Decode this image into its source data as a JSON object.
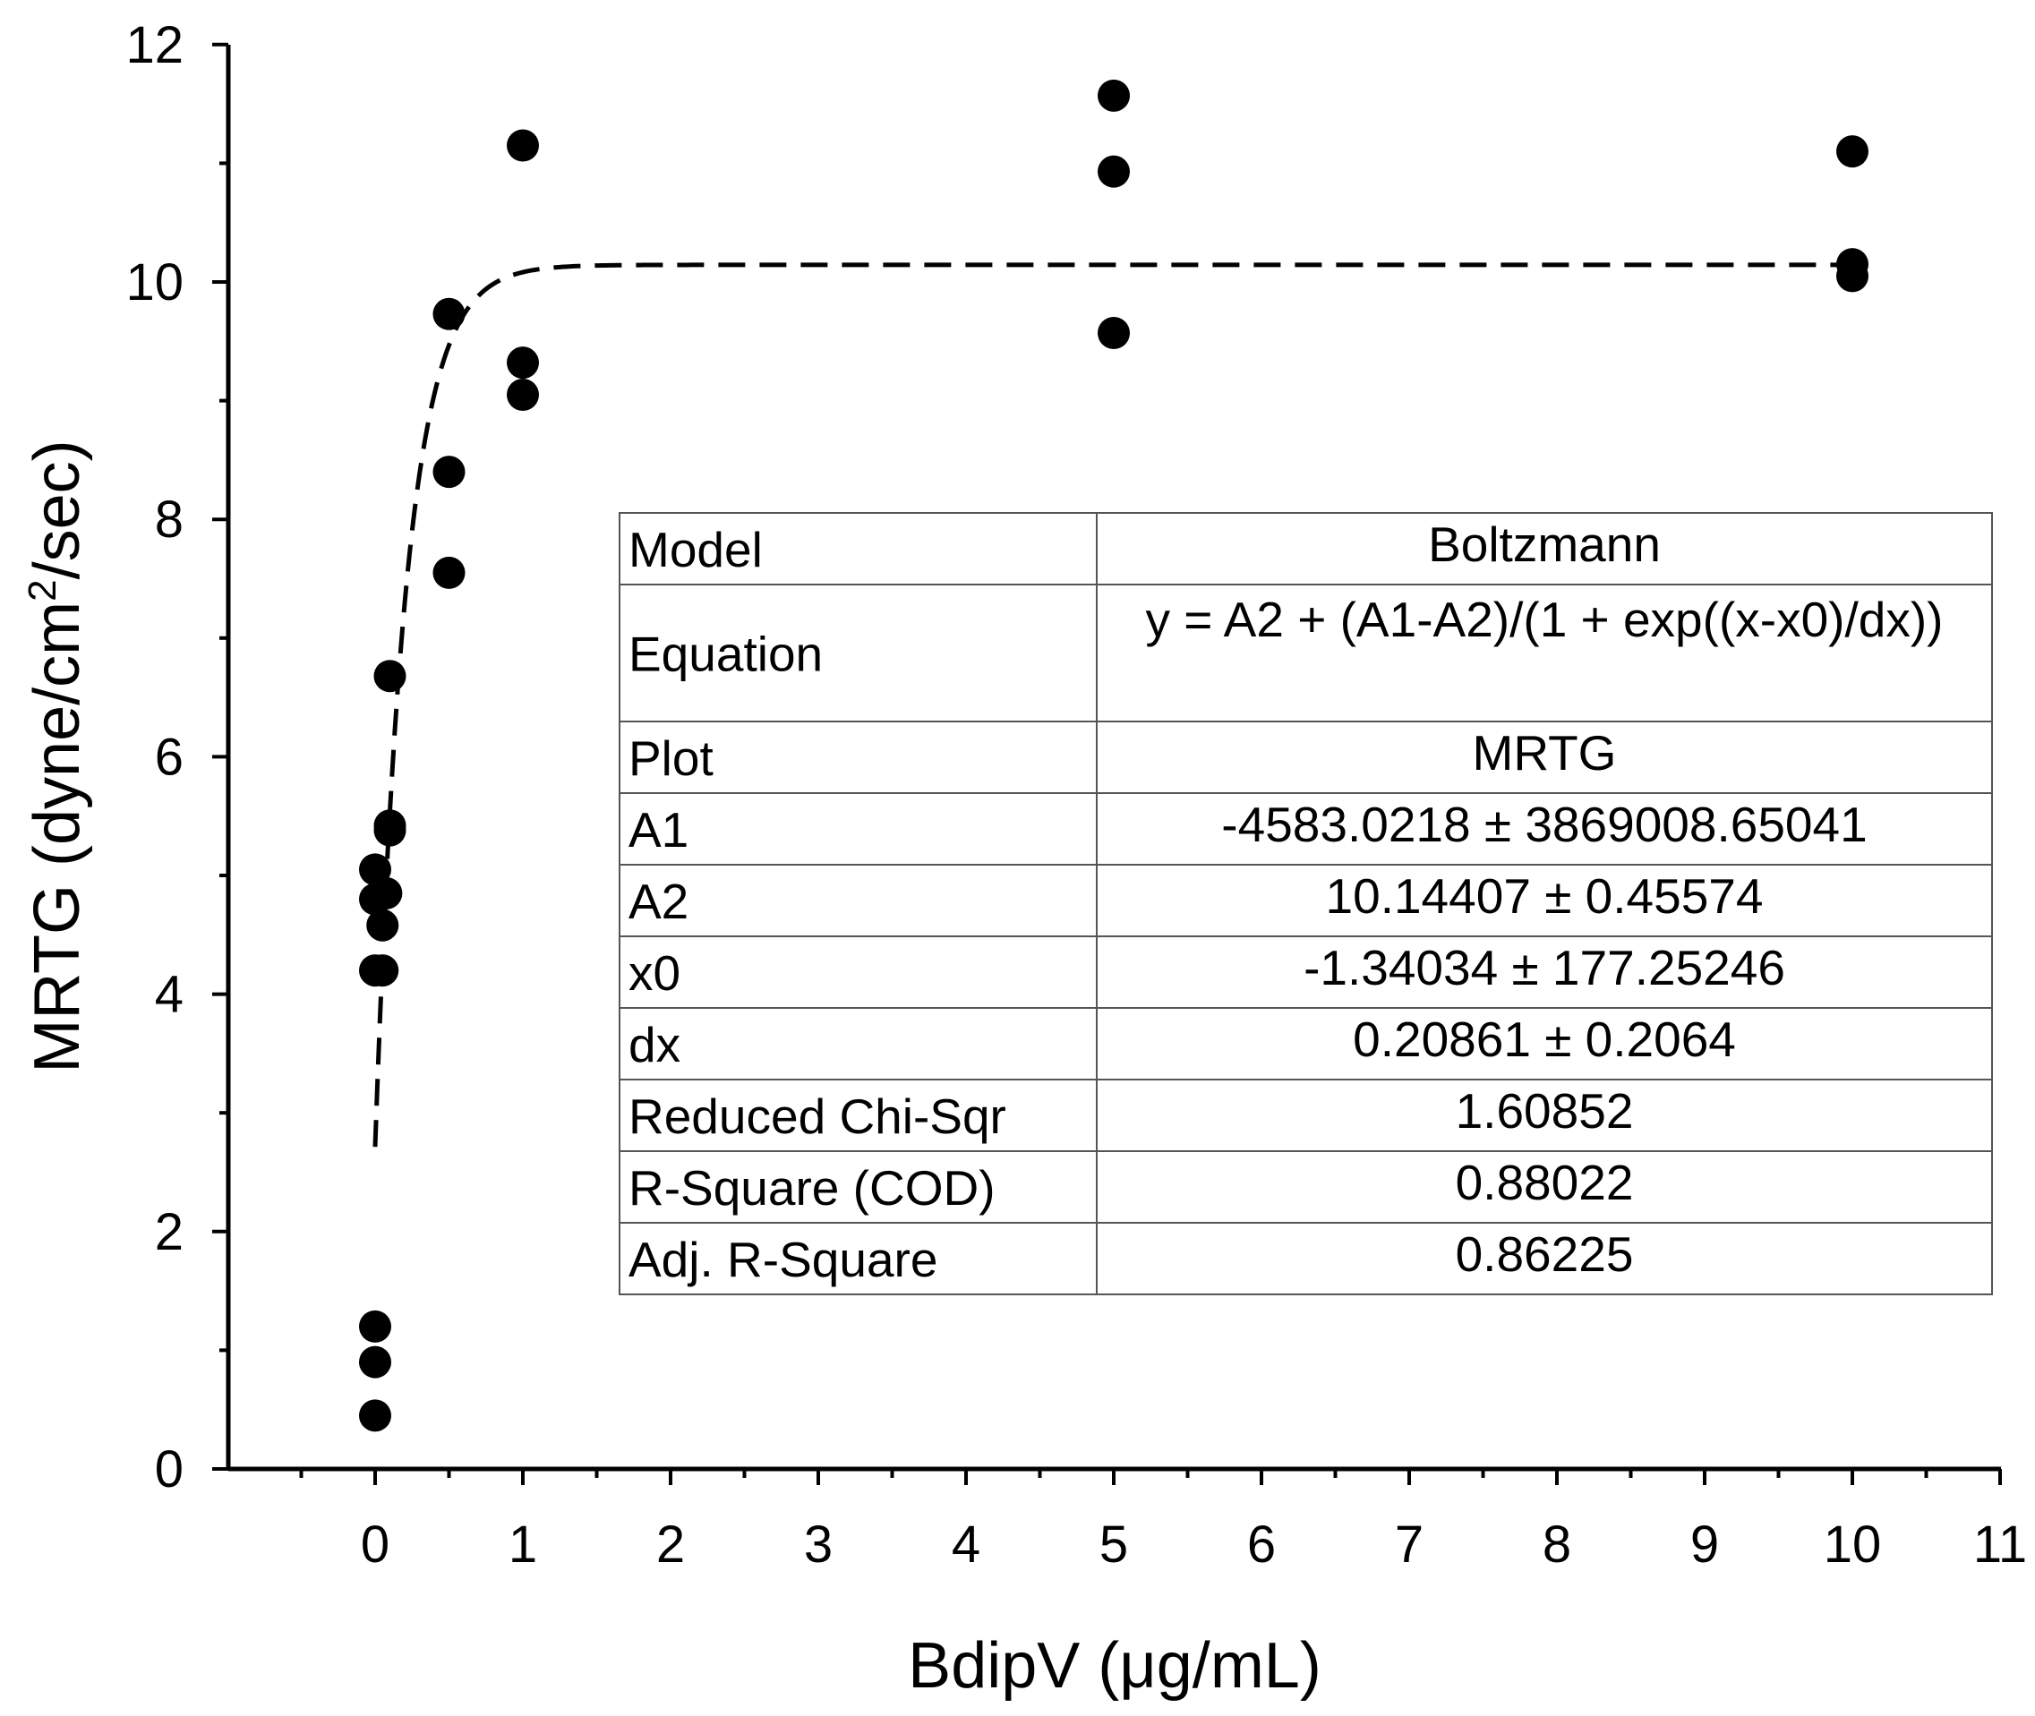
{
  "chart_data": {
    "type": "scatter",
    "xlabel": "BdipV (μg/mL)",
    "ylabel": {
      "prefix": "MRTG (dyne/cm",
      "superscript": "2",
      "suffix": "/sec)"
    },
    "xlim": [
      -1,
      11
    ],
    "ylim": [
      0,
      12
    ],
    "x_ticks": [
      "0",
      "1",
      "2",
      "3",
      "4",
      "5",
      "6",
      "7",
      "8",
      "9",
      "10",
      "11"
    ],
    "y_ticks": [
      "0",
      "2",
      "4",
      "6",
      "8",
      "10",
      "12"
    ],
    "grid": false,
    "points": [
      {
        "x": 0,
        "y": 0.45
      },
      {
        "x": 0,
        "y": 0.9
      },
      {
        "x": 0,
        "y": 1.2
      },
      {
        "x": 0,
        "y": 4.2
      },
      {
        "x": 0,
        "y": 4.8
      },
      {
        "x": 0,
        "y": 5.05
      },
      {
        "x": 0.05,
        "y": 4.2
      },
      {
        "x": 0.05,
        "y": 4.58
      },
      {
        "x": 0.075,
        "y": 4.85
      },
      {
        "x": 0.1,
        "y": 5.38
      },
      {
        "x": 0.1,
        "y": 5.42
      },
      {
        "x": 0.1,
        "y": 6.68
      },
      {
        "x": 0.5,
        "y": 7.55
      },
      {
        "x": 0.5,
        "y": 8.4
      },
      {
        "x": 0.5,
        "y": 9.73
      },
      {
        "x": 1,
        "y": 9.05
      },
      {
        "x": 1,
        "y": 9.32
      },
      {
        "x": 1,
        "y": 11.15
      },
      {
        "x": 5,
        "y": 9.57
      },
      {
        "x": 5,
        "y": 10.93
      },
      {
        "x": 5,
        "y": 11.57
      },
      {
        "x": 10,
        "y": 10.05
      },
      {
        "x": 10,
        "y": 10.15
      },
      {
        "x": 10,
        "y": 11.1
      }
    ],
    "fit": {
      "model": "Boltzmann",
      "line_style": "dashed",
      "A1": -4583.0218,
      "A2": 10.14407,
      "x0": -1.34034,
      "dx": 0.20861,
      "x_range": [
        0,
        10
      ]
    },
    "table": [
      {
        "label": "Model",
        "value": "Boltzmann"
      },
      {
        "label": "Equation",
        "value": "y = A2 + (A1-A2)/(1 + exp((x-x0)/dx))"
      },
      {
        "label": "Plot",
        "value": "MRTG"
      },
      {
        "label": "A1",
        "value": "-4583.0218 ± 3869008.65041"
      },
      {
        "label": "A2",
        "value": "10.14407 ± 0.45574"
      },
      {
        "label": "x0",
        "value": "-1.34034 ± 177.25246"
      },
      {
        "label": "dx",
        "value": "0.20861 ± 0.2064"
      },
      {
        "label": "Reduced Chi-Sqr",
        "value": "1.60852"
      },
      {
        "label": "R-Square (COD)",
        "value": "0.88022"
      },
      {
        "label": "Adj. R-Square",
        "value": "0.86225"
      }
    ]
  }
}
